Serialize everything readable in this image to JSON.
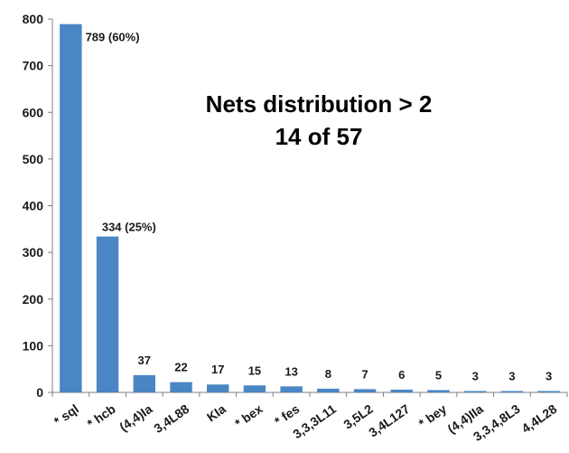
{
  "chart_data": {
    "type": "bar",
    "title": "Nets distribution > 2",
    "subtitle": "14 of 57",
    "xlabel": "",
    "ylabel": "",
    "ylim": [
      0,
      800
    ],
    "yticks": [
      0,
      100,
      200,
      300,
      400,
      500,
      600,
      700,
      800
    ],
    "grid": false,
    "categories": [
      "* sql",
      "* hcb",
      "(4,4)Ia",
      "3,4L88",
      "KIa",
      "* bex",
      "* fes",
      "3,3,3L11",
      "3,5L2",
      "3,4L127",
      "* bey",
      "(4,4)IIa",
      "3,3,4,8L3",
      "4,4L28"
    ],
    "values": [
      789,
      334,
      37,
      22,
      17,
      15,
      13,
      8,
      7,
      6,
      5,
      3,
      3,
      3
    ],
    "data_labels": [
      "789  (60%)",
      "334  (25%)",
      "37",
      "22",
      "17",
      "15",
      "13",
      "8",
      "7",
      "6",
      "5",
      "3",
      "3",
      "3"
    ],
    "bar_color": "#4a86c4",
    "axis_color": "#808080"
  }
}
